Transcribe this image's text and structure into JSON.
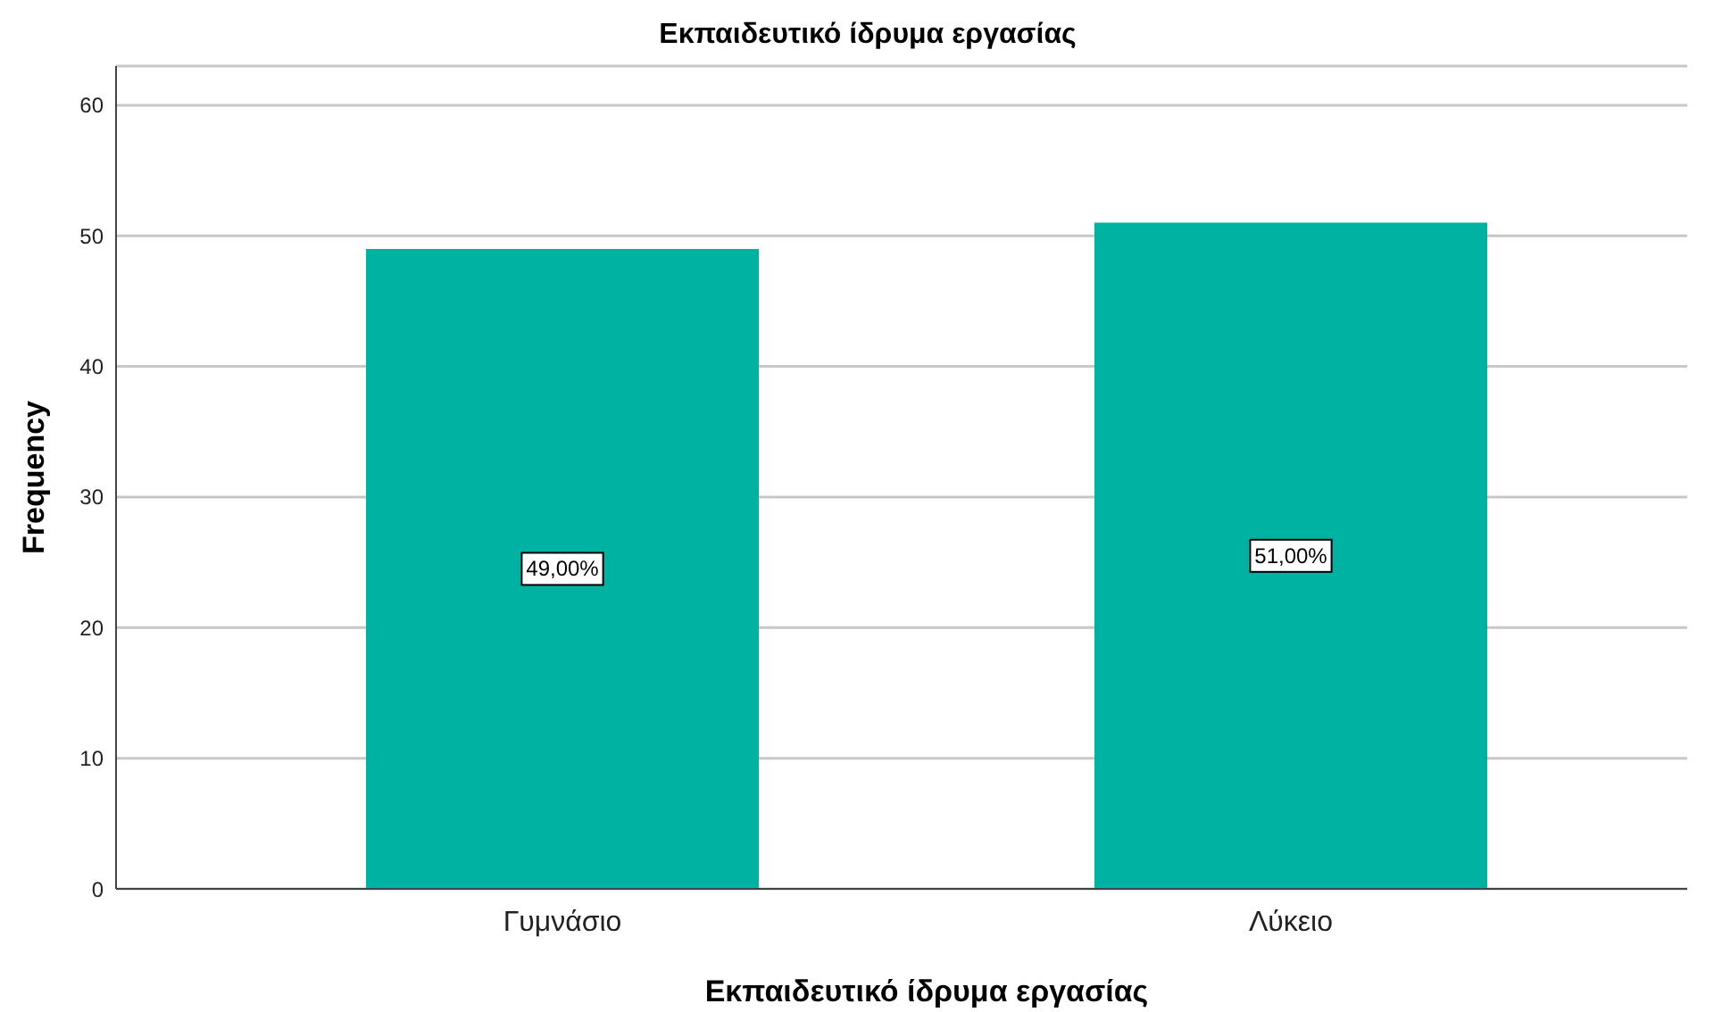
{
  "chart_data": {
    "type": "bar",
    "title": "Εκπαιδευτικό ίδρυμα εργασίας",
    "xlabel": "Εκπαιδευτικό ίδρυμα εργασίας",
    "ylabel": "Frequency",
    "categories": [
      "Γυμνάσιο",
      "Λύκειο"
    ],
    "values": [
      49,
      51
    ],
    "color": "#00b2a1",
    "value_labels": [
      "49,00%",
      "51,00%"
    ],
    "ylim": [
      0,
      63
    ],
    "yticks": [
      0,
      10,
      20,
      30,
      40,
      50,
      60
    ],
    "grid": "y"
  }
}
